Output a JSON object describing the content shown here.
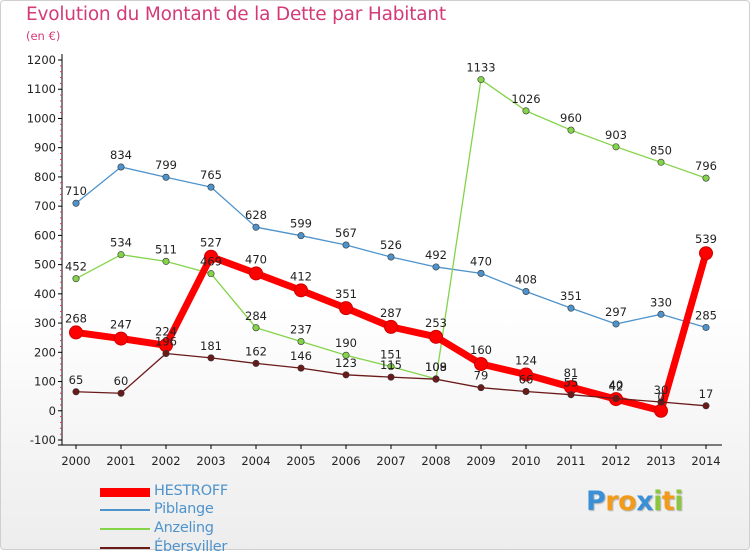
{
  "header": {
    "title": "Evolution du Montant de la Dette par Habitant",
    "unit": "(en €)"
  },
  "colors": {
    "title": "#d43a78",
    "HESTROFF": "#ff0000",
    "Piblange": "#4e93cc",
    "Anzeling": "#84d44a",
    "Ebersviller": "#6b1a1a",
    "axis": "#000000"
  },
  "chart_data": {
    "type": "line",
    "title": "Evolution du Montant de la Dette par Habitant",
    "ylabel": "(en €)",
    "x": [
      2000,
      2001,
      2002,
      2003,
      2004,
      2005,
      2006,
      2007,
      2008,
      2009,
      2010,
      2011,
      2012,
      2013,
      2014
    ],
    "ylim": [
      -100,
      1200
    ],
    "yticks": [
      -100,
      0,
      100,
      200,
      300,
      400,
      500,
      600,
      700,
      800,
      900,
      1000,
      1100,
      1200
    ],
    "grid": false,
    "legend_position": "bottom-left",
    "series": [
      {
        "name": "HESTROFF",
        "color": "#ff0000",
        "values": [
          268,
          247,
          224,
          527,
          470,
          412,
          351,
          287,
          253,
          160,
          124,
          81,
          40,
          0,
          539
        ],
        "labels": [
          "268",
          "247",
          "224",
          "527",
          "470",
          "412",
          "351",
          "287",
          "253",
          "160",
          "124",
          "81",
          "40",
          "0",
          "539"
        ]
      },
      {
        "name": "Piblange",
        "color": "#4e93cc",
        "values": [
          710,
          834,
          799,
          765,
          628,
          599,
          567,
          526,
          492,
          470,
          408,
          351,
          297,
          330,
          285
        ],
        "labels": [
          "710",
          "834",
          "799",
          "765",
          "628",
          "599",
          "567",
          "526",
          "492",
          "470",
          "408",
          "351",
          "297",
          "330",
          "285"
        ]
      },
      {
        "name": "Anzeling",
        "color": "#84d44a",
        "values": [
          452,
          534,
          511,
          469,
          284,
          237,
          190,
          151,
          109,
          1133,
          1026,
          960,
          903,
          850,
          796
        ],
        "labels": [
          "452",
          "534",
          "511",
          "469",
          "284",
          "237",
          "190",
          "151",
          "109",
          "1133",
          "1026",
          "960",
          "903",
          "850",
          "796"
        ]
      },
      {
        "name": "Ébersviller",
        "color": "#6b1a1a",
        "values": [
          65,
          60,
          196,
          181,
          162,
          146,
          123,
          115,
          108,
          79,
          66,
          55,
          42,
          30,
          17
        ],
        "labels": [
          "65",
          "60",
          "196",
          "181",
          "162",
          "146",
          "123",
          "115",
          "108",
          "79",
          "66",
          "55",
          "42",
          "30",
          "17"
        ]
      }
    ]
  },
  "logo": {
    "letters": [
      "P",
      "r",
      "o",
      "x",
      "i",
      "t",
      "i"
    ],
    "colors": [
      "#3a8fd6",
      "#f29a1a",
      "#f29a1a",
      "#3a8fd6",
      "#8cc63f",
      "#f29a1a",
      "#8cc63f"
    ]
  }
}
